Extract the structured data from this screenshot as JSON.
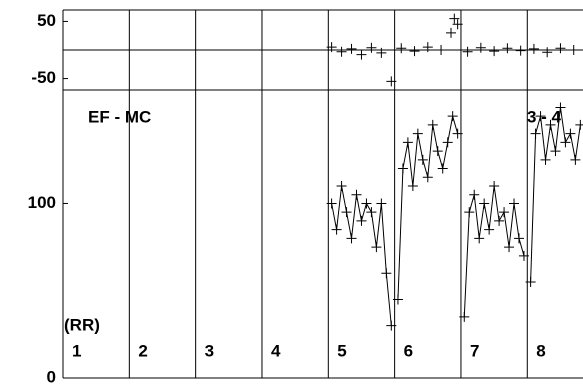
{
  "chart_data": [
    {
      "type": "scatter",
      "marker": "+",
      "color": "#000000",
      "xlim": [
        0,
        7.84
      ],
      "xticks": [
        0,
        1,
        2,
        3,
        4,
        5,
        6,
        7
      ],
      "ylim": [
        -70,
        70
      ],
      "yticks": [
        50,
        -50
      ],
      "series": [
        {
          "color": "#000000",
          "x": [
            4.05,
            4.2,
            4.35,
            4.5,
            4.65,
            4.8,
            4.95,
            5.1,
            5.3,
            5.5,
            5.7,
            5.85,
            5.9,
            5.95,
            6.1,
            6.3,
            6.5,
            6.7,
            6.9,
            7.1,
            7.3,
            7.5,
            7.7
          ],
          "values": [
            5,
            -3,
            2,
            -8,
            4,
            -5,
            -55,
            3,
            -2,
            5,
            0,
            30,
            55,
            45,
            -3,
            4,
            -2,
            3,
            -1,
            2,
            -4,
            3,
            0
          ]
        }
      ]
    },
    {
      "type": "line",
      "marker": "+",
      "color": "#000000",
      "xlim": [
        0,
        7.84
      ],
      "xticks": [
        0,
        1,
        2,
        3,
        4,
        5,
        6,
        7
      ],
      "ylim": [
        0,
        165
      ],
      "yticks": [
        100,
        0
      ],
      "categories": [
        "1",
        "2",
        "3",
        "4",
        "5",
        "6",
        "7",
        "8"
      ],
      "annotations": [
        "EF - MC",
        "3 - 4",
        "(RR)"
      ],
      "series": [
        {
          "color": "#000000",
          "x": [
            4.05,
            4.125,
            4.2,
            4.275,
            4.35,
            4.425,
            4.5,
            4.575,
            4.65,
            4.725,
            4.8,
            4.875,
            4.95
          ],
          "values": [
            100,
            85,
            110,
            95,
            80,
            105,
            90,
            100,
            95,
            75,
            100,
            60,
            30
          ]
        },
        {
          "color": "#000000",
          "x": [
            5.05,
            5.125,
            5.2,
            5.275,
            5.35,
            5.425,
            5.5,
            5.575,
            5.65,
            5.725,
            5.8,
            5.875,
            5.95
          ],
          "values": [
            45,
            120,
            135,
            110,
            140,
            125,
            115,
            145,
            130,
            120,
            135,
            150,
            140
          ]
        },
        {
          "color": "#000000",
          "x": [
            6.05,
            6.125,
            6.2,
            6.275,
            6.35,
            6.425,
            6.5,
            6.575,
            6.65,
            6.725,
            6.8,
            6.875,
            6.95
          ],
          "values": [
            35,
            95,
            105,
            80,
            100,
            85,
            110,
            90,
            95,
            75,
            100,
            80,
            70
          ]
        },
        {
          "color": "#000000",
          "x": [
            7.05,
            7.125,
            7.2,
            7.275,
            7.35,
            7.425,
            7.5,
            7.575,
            7.65,
            7.725,
            7.8
          ],
          "values": [
            55,
            140,
            150,
            125,
            145,
            130,
            155,
            135,
            140,
            125,
            145
          ]
        }
      ]
    }
  ]
}
